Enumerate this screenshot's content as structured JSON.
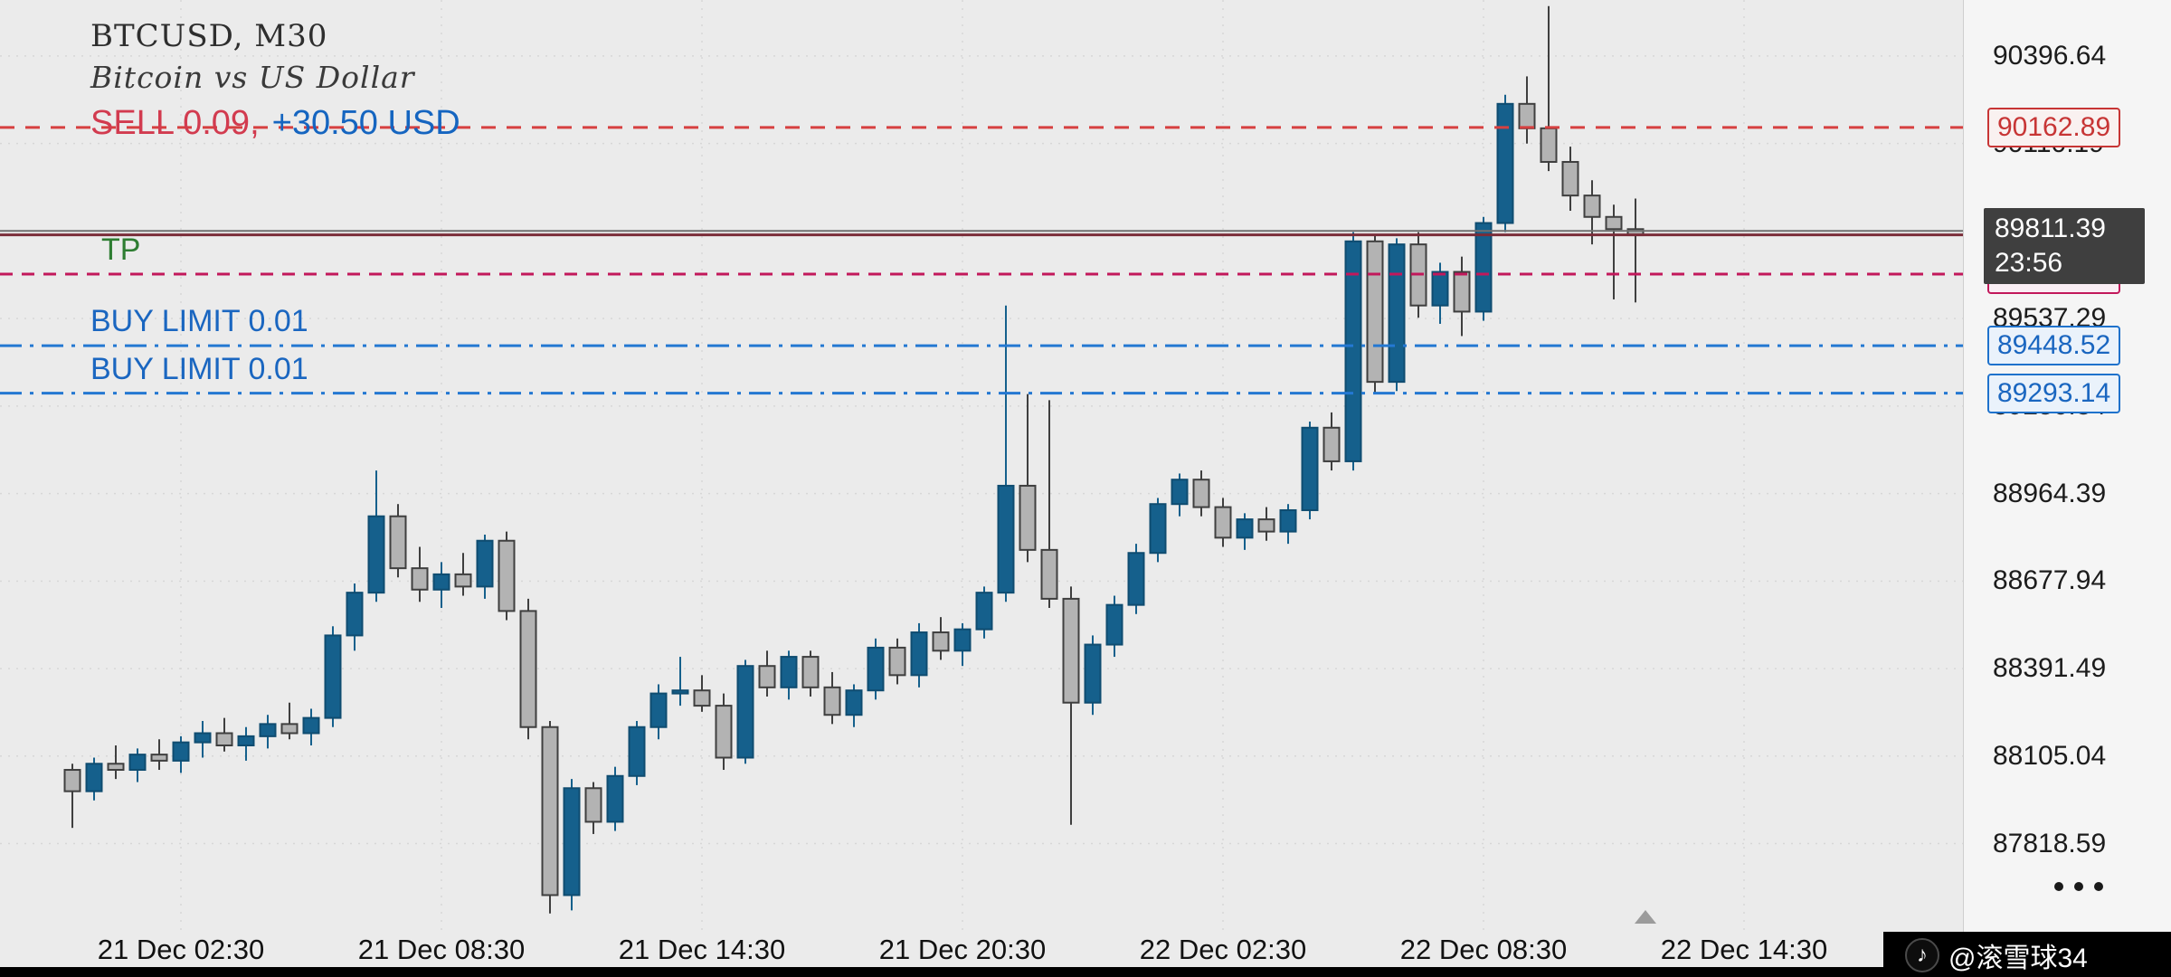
{
  "header": {
    "symbol_period": "BTCUSD, M30",
    "description": "Bitcoin vs US Dollar",
    "position": {
      "side_volume": "SELL 0.09,",
      "profit": "+30.50 USD"
    }
  },
  "levels": {
    "sell_open": {
      "price_label": "90162.89",
      "value": 90162.89
    },
    "tp": {
      "label": "TP",
      "price_label": "89682.62",
      "value": 89682.62
    },
    "buy_limit_1": {
      "label": "BUY LIMIT 0.01",
      "price_label": "89448.52",
      "value": 89448.52
    },
    "buy_limit_2": {
      "label": "BUY LIMIT 0.01",
      "price_label": "89293.14",
      "value": 89293.14
    },
    "bid": {
      "price_label": "89811.39",
      "value": 89811.39,
      "time": "23:56"
    },
    "ask_value": 89824
  },
  "y_axis": {
    "labels": [
      "90396.64",
      "90110.19",
      "89823.74",
      "89537.29",
      "89250.84",
      "88964.39",
      "88677.94",
      "88391.49",
      "88105.04",
      "87818.59"
    ]
  },
  "chart_data": {
    "type": "candlestick",
    "symbol": "BTCUSD",
    "timeframe": "M30",
    "title": "BTCUSD, M30",
    "subtitle": "Bitcoin vs US Dollar",
    "start_time": "21 Dec 00:00",
    "interval_minutes": 30,
    "price_range": [
      87530,
      90580
    ],
    "grid": "dotted",
    "legend": "none",
    "x_ticks": [
      {
        "index": 5,
        "label": "21 Dec 02:30"
      },
      {
        "index": 17,
        "label": "21 Dec 08:30"
      },
      {
        "index": 29,
        "label": "21 Dec 14:30"
      },
      {
        "index": 41,
        "label": "21 Dec 20:30"
      },
      {
        "index": 53,
        "label": "22 Dec 02:30"
      },
      {
        "index": 65,
        "label": "22 Dec 08:30"
      },
      {
        "index": 77,
        "label": "22 Dec 14:30"
      }
    ],
    "ohlc_format": [
      "open",
      "high",
      "low",
      "close"
    ],
    "candles": [
      [
        88060,
        88080,
        87870,
        87990
      ],
      [
        87990,
        88100,
        87960,
        88080
      ],
      [
        88080,
        88140,
        88030,
        88060
      ],
      [
        88060,
        88130,
        88020,
        88110
      ],
      [
        88110,
        88160,
        88060,
        88090
      ],
      [
        88090,
        88170,
        88050,
        88150
      ],
      [
        88150,
        88220,
        88100,
        88180
      ],
      [
        88180,
        88230,
        88120,
        88140
      ],
      [
        88140,
        88200,
        88090,
        88170
      ],
      [
        88170,
        88240,
        88130,
        88210
      ],
      [
        88210,
        88280,
        88160,
        88180
      ],
      [
        88180,
        88260,
        88140,
        88230
      ],
      [
        88230,
        88530,
        88200,
        88500
      ],
      [
        88500,
        88670,
        88450,
        88640
      ],
      [
        88640,
        89040,
        88610,
        88890
      ],
      [
        88890,
        88930,
        88690,
        88720
      ],
      [
        88720,
        88790,
        88610,
        88650
      ],
      [
        88650,
        88740,
        88590,
        88700
      ],
      [
        88700,
        88770,
        88630,
        88660
      ],
      [
        88660,
        88830,
        88620,
        88810
      ],
      [
        88810,
        88840,
        88550,
        88580
      ],
      [
        88580,
        88620,
        88160,
        88200
      ],
      [
        88200,
        88220,
        87590,
        87650
      ],
      [
        87650,
        88030,
        87600,
        88000
      ],
      [
        88000,
        88020,
        87850,
        87890
      ],
      [
        87890,
        88070,
        87860,
        88040
      ],
      [
        88040,
        88220,
        88010,
        88200
      ],
      [
        88200,
        88340,
        88160,
        88310
      ],
      [
        88310,
        88430,
        88270,
        88320
      ],
      [
        88320,
        88370,
        88250,
        88270
      ],
      [
        88270,
        88310,
        88060,
        88100
      ],
      [
        88100,
        88420,
        88080,
        88400
      ],
      [
        88400,
        88450,
        88300,
        88330
      ],
      [
        88330,
        88450,
        88290,
        88430
      ],
      [
        88430,
        88450,
        88300,
        88330
      ],
      [
        88330,
        88380,
        88210,
        88240
      ],
      [
        88240,
        88340,
        88200,
        88320
      ],
      [
        88320,
        88490,
        88290,
        88460
      ],
      [
        88460,
        88490,
        88340,
        88370
      ],
      [
        88370,
        88540,
        88330,
        88510
      ],
      [
        88510,
        88560,
        88420,
        88450
      ],
      [
        88450,
        88540,
        88400,
        88520
      ],
      [
        88520,
        88660,
        88490,
        88640
      ],
      [
        88640,
        89580,
        88610,
        88990
      ],
      [
        88990,
        89290,
        88740,
        88780
      ],
      [
        88780,
        89270,
        88590,
        88620
      ],
      [
        88620,
        88660,
        87880,
        88280
      ],
      [
        88280,
        88500,
        88240,
        88470
      ],
      [
        88470,
        88630,
        88430,
        88600
      ],
      [
        88600,
        88800,
        88570,
        88770
      ],
      [
        88770,
        88950,
        88740,
        88930
      ],
      [
        88930,
        89030,
        88890,
        89010
      ],
      [
        89010,
        89040,
        88890,
        88920
      ],
      [
        88920,
        88950,
        88790,
        88820
      ],
      [
        88820,
        88900,
        88780,
        88880
      ],
      [
        88880,
        88920,
        88810,
        88840
      ],
      [
        88840,
        88930,
        88800,
        88910
      ],
      [
        88910,
        89200,
        88880,
        89180
      ],
      [
        89180,
        89230,
        89040,
        89070
      ],
      [
        89070,
        89820,
        89040,
        89790
      ],
      [
        89790,
        89810,
        89290,
        89330
      ],
      [
        89330,
        89800,
        89300,
        89780
      ],
      [
        89780,
        89820,
        89540,
        89580
      ],
      [
        89580,
        89720,
        89520,
        89690
      ],
      [
        89690,
        89740,
        89480,
        89560
      ],
      [
        89560,
        89870,
        89530,
        89850
      ],
      [
        89850,
        90270,
        89820,
        90240
      ],
      [
        90240,
        90330,
        90110,
        90160
      ],
      [
        90160,
        90560,
        90020,
        90050
      ],
      [
        90050,
        90100,
        89890,
        89940
      ],
      [
        89940,
        89990,
        89780,
        89870
      ],
      [
        89870,
        89910,
        89600,
        89830
      ],
      [
        89830,
        89930,
        89590,
        89810
      ]
    ]
  },
  "colors": {
    "background": "#ebebeb",
    "axis_background": "#f5f5f5",
    "bull": "#15608c",
    "bull_border": "#0f4c70",
    "bear_fill": "#b3b3b3",
    "bear_border": "#3f3f3f",
    "grid": "#d7d7d7",
    "sell_line": "#d64040",
    "tp_line": "#c2185b",
    "buy_line": "#2478d2",
    "bid_line": "#7a2d39",
    "ask_line": "#707070",
    "sell_text": "#d23b4f",
    "profit_text": "#1565c0",
    "tp_text": "#2e7d32",
    "buy_text": "#1a66c0"
  },
  "footer": {
    "watermark": "@滚雪球34"
  }
}
